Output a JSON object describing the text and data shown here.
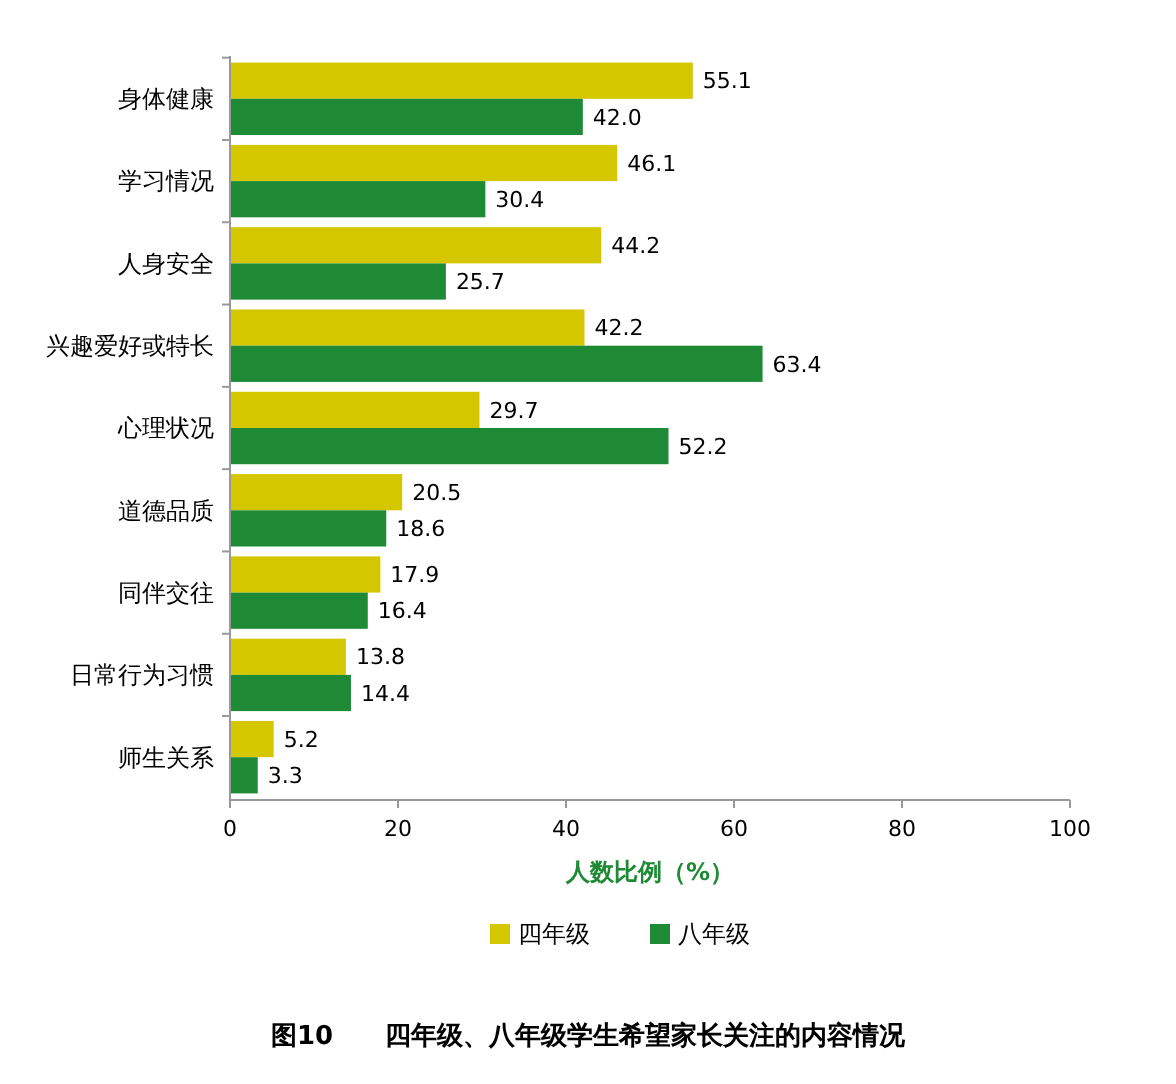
{
  "chart_data": {
    "type": "bar",
    "orientation": "horizontal",
    "title": "图10　　四年级、八年级学生希望家长关注的内容情况",
    "xlabel": "人数比例（%）",
    "categories": [
      "身体健康",
      "学习情况",
      "人身安全",
      "兴趣爱好或特长",
      "心理状况",
      "道德品质",
      "同伴交往",
      "日常行为习惯",
      "师生关系"
    ],
    "series": [
      {
        "name": "四年级",
        "color": "#d4c700",
        "values": [
          55.1,
          46.1,
          44.2,
          42.2,
          29.7,
          20.5,
          17.9,
          13.8,
          5.2
        ],
        "value_labels": [
          "55.1",
          "46.1",
          "44.2",
          "42.2",
          "29.7",
          "20.5",
          "17.9",
          "13.8",
          "5.2"
        ]
      },
      {
        "name": "八年级",
        "color": "#1e8a35",
        "values": [
          42.0,
          30.4,
          25.7,
          63.4,
          52.2,
          18.6,
          16.4,
          14.4,
          3.3
        ],
        "value_labels": [
          "42.0",
          "30.4",
          "25.7",
          "63.4",
          "52.2",
          "18.6",
          "16.4",
          "14.4",
          "3.3"
        ]
      }
    ],
    "xlim": [
      0,
      100
    ],
    "xticks": [
      0,
      20,
      40,
      60,
      80,
      100
    ],
    "legend": "bottom"
  }
}
